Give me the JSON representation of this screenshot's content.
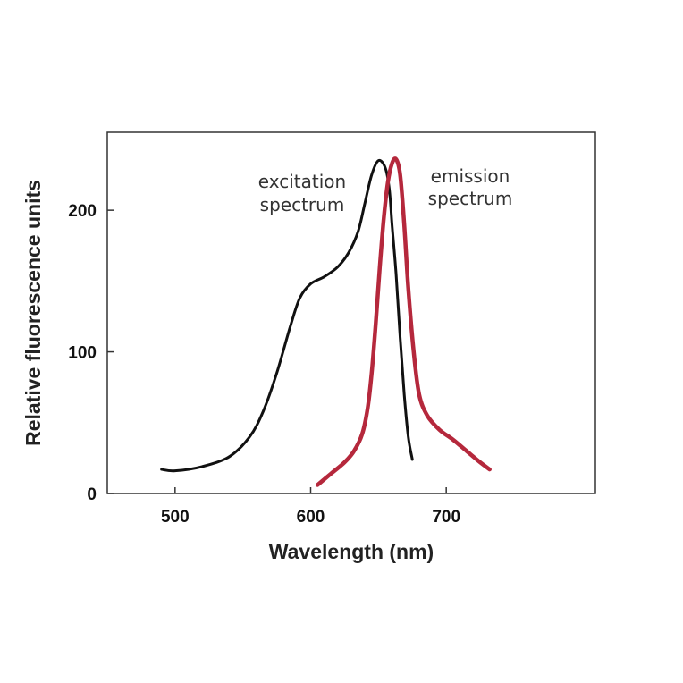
{
  "chart_data": {
    "type": "line",
    "title": "",
    "xlabel": "Wavelength (nm)",
    "ylabel": "Relative fluorescence units",
    "xlim": [
      450,
      810
    ],
    "ylim": [
      0,
      255
    ],
    "x_ticks": [
      500,
      600,
      700
    ],
    "y_ticks": [
      0,
      100,
      200
    ],
    "grid": false,
    "legend": "none",
    "annotations": [
      {
        "lines": [
          "excitation",
          "spectrum"
        ],
        "series": "excitation"
      },
      {
        "lines": [
          "emission",
          "spectrum"
        ],
        "series": "emission"
      }
    ],
    "series": [
      {
        "id": "excitation",
        "color": "#111111",
        "points": [
          [
            490,
            17
          ],
          [
            500,
            16
          ],
          [
            520,
            19
          ],
          [
            540,
            26
          ],
          [
            555,
            40
          ],
          [
            565,
            58
          ],
          [
            575,
            85
          ],
          [
            585,
            118
          ],
          [
            592,
            138
          ],
          [
            600,
            148
          ],
          [
            610,
            153
          ],
          [
            620,
            160
          ],
          [
            628,
            170
          ],
          [
            635,
            185
          ],
          [
            640,
            205
          ],
          [
            645,
            225
          ],
          [
            650,
            235
          ],
          [
            655,
            230
          ],
          [
            658,
            215
          ],
          [
            660,
            190
          ],
          [
            663,
            155
          ],
          [
            666,
            110
          ],
          [
            669,
            70
          ],
          [
            672,
            40
          ],
          [
            675,
            24
          ]
        ]
      },
      {
        "id": "emission",
        "color": "#b5283c",
        "points": [
          [
            605,
            6
          ],
          [
            615,
            14
          ],
          [
            625,
            22
          ],
          [
            632,
            30
          ],
          [
            638,
            42
          ],
          [
            642,
            60
          ],
          [
            645,
            85
          ],
          [
            648,
            120
          ],
          [
            651,
            160
          ],
          [
            654,
            195
          ],
          [
            657,
            220
          ],
          [
            660,
            233
          ],
          [
            663,
            236
          ],
          [
            666,
            225
          ],
          [
            669,
            190
          ],
          [
            672,
            145
          ],
          [
            676,
            100
          ],
          [
            680,
            70
          ],
          [
            686,
            55
          ],
          [
            695,
            45
          ],
          [
            705,
            38
          ],
          [
            715,
            30
          ],
          [
            725,
            22
          ],
          [
            732,
            17
          ]
        ]
      }
    ]
  }
}
